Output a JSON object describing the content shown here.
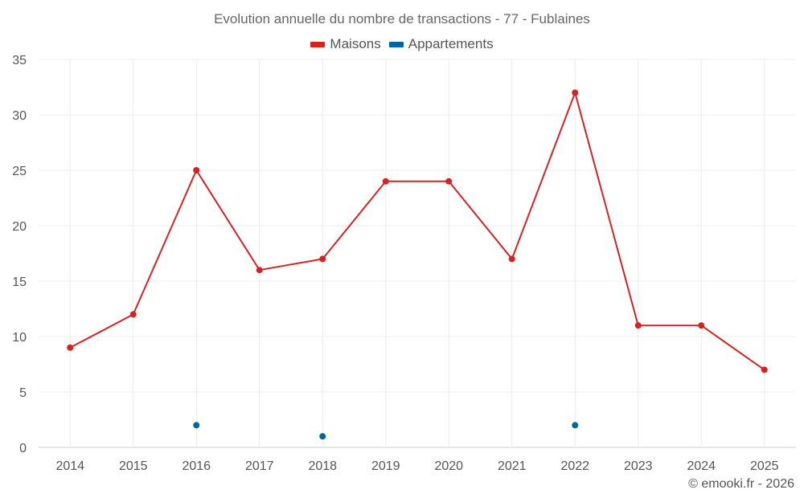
{
  "chart_data": {
    "type": "line",
    "title": "Evolution annuelle du nombre de transactions - 77 - Fublaines",
    "categories": [
      "2014",
      "2015",
      "2016",
      "2017",
      "2018",
      "2019",
      "2020",
      "2021",
      "2022",
      "2023",
      "2024",
      "2025"
    ],
    "ylim": [
      0,
      35
    ],
    "yticks": [
      0,
      5,
      10,
      15,
      20,
      25,
      30,
      35
    ],
    "grid": true,
    "legend_position": "top-center",
    "series": [
      {
        "name": "Maisons",
        "color": "#d32323",
        "values": [
          9,
          12,
          25,
          16,
          17,
          24,
          24,
          17,
          32,
          11,
          11,
          7
        ]
      },
      {
        "name": "Appartements",
        "color": "#00679c",
        "values": [
          null,
          null,
          2,
          null,
          1,
          null,
          null,
          null,
          2,
          null,
          null,
          null
        ]
      }
    ]
  },
  "credit": "© emooki.fr - 2026"
}
